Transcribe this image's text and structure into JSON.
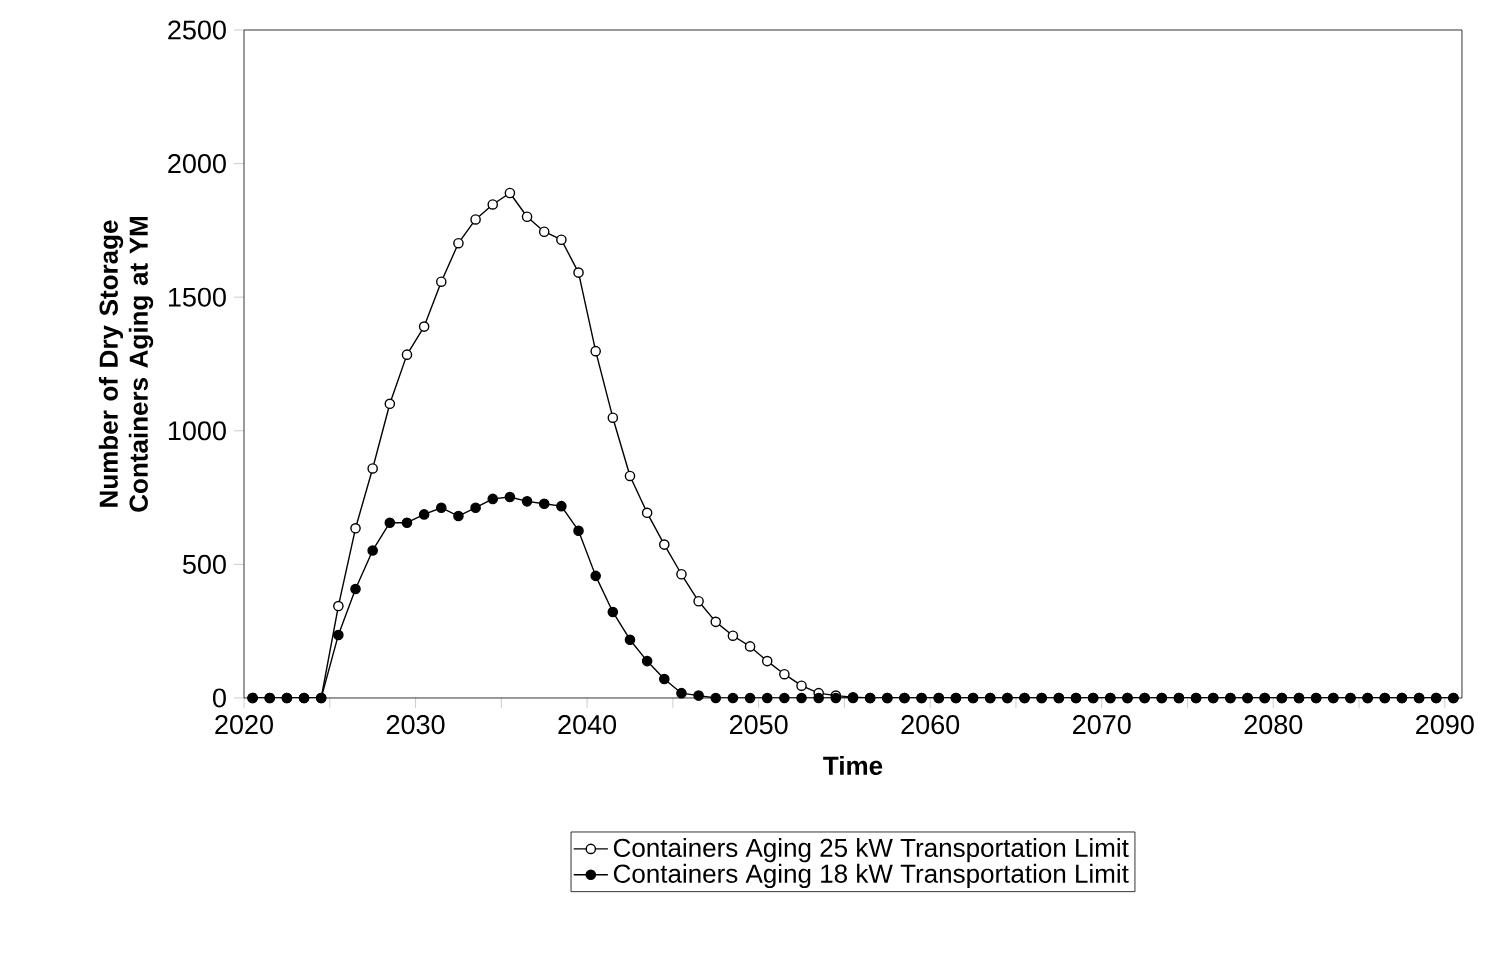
{
  "chart_data": {
    "type": "line",
    "xlabel": "Time",
    "ylabel": "Number of Dry Storage Containers Aging at YM",
    "x": [
      2020.5,
      2021.5,
      2022.5,
      2023.5,
      2024.5,
      2025.5,
      2026.5,
      2027.5,
      2028.5,
      2029.5,
      2030.5,
      2031.5,
      2032.5,
      2033.5,
      2034.5,
      2035.5,
      2036.5,
      2037.5,
      2038.5,
      2039.5,
      2040.5,
      2041.5,
      2042.5,
      2043.5,
      2044.5,
      2045.5,
      2046.5,
      2047.5,
      2048.5,
      2049.5,
      2050.5,
      2051.5,
      2052.5,
      2053.5,
      2054.5,
      2055.5,
      2056.5,
      2057.5,
      2058.5,
      2059.5,
      2060.5,
      2061.5,
      2062.5,
      2063.5,
      2064.5,
      2065.5,
      2066.5,
      2067.5,
      2068.5,
      2069.5,
      2070.5,
      2071.5,
      2072.5,
      2073.5,
      2074.5,
      2075.5,
      2076.5,
      2077.5,
      2078.5,
      2079.5,
      2080.5,
      2081.5,
      2082.5,
      2083.5,
      2084.5,
      2085.5,
      2086.5,
      2087.5,
      2088.5,
      2089.5,
      2090.5
    ],
    "series": [
      {
        "name": "Containers Aging 25 kW Transportation Limit",
        "color": "#000000",
        "values": [
          0,
          0,
          0,
          0,
          0,
          344,
          635,
          859,
          1101,
          1285,
          1390,
          1558,
          1702,
          1791,
          1847,
          1890,
          1801,
          1745,
          1715,
          1592,
          1298,
          1049,
          831,
          693,
          574,
          463,
          362,
          285,
          233,
          193,
          138,
          89,
          46,
          18,
          9,
          3,
          0,
          0,
          0,
          0,
          0,
          0,
          0,
          0,
          0,
          0,
          0,
          0,
          0,
          0,
          0,
          0,
          0,
          0,
          0,
          0,
          0,
          0,
          0,
          0,
          0,
          0,
          0,
          0,
          0,
          0,
          0,
          0,
          0,
          0,
          0
        ]
      },
      {
        "name": "Containers Aging 18 kW Transportation Limit",
        "color": "#000000",
        "values": [
          0,
          0,
          0,
          0,
          0,
          236,
          408,
          552,
          656,
          656,
          687,
          712,
          681,
          712,
          745,
          752,
          736,
          727,
          718,
          626,
          457,
          322,
          218,
          138,
          71,
          18,
          9,
          0,
          0,
          0,
          0,
          0,
          0,
          0,
          0,
          0,
          0,
          0,
          0,
          0,
          0,
          0,
          0,
          0,
          0,
          0,
          0,
          0,
          0,
          0,
          0,
          0,
          0,
          0,
          0,
          0,
          0,
          0,
          0,
          0,
          0,
          0,
          0,
          0,
          0,
          0,
          0,
          0,
          0,
          0,
          0
        ]
      }
    ],
    "xlim": [
      2020,
      2091
    ],
    "ylim": [
      0,
      2500
    ],
    "xticks": [
      2020,
      {
        "value": 2025,
        "label": null
      },
      2030,
      {
        "value": 2035,
        "label": null
      },
      2040,
      {
        "value": 2045,
        "label": null
      },
      2050,
      {
        "value": 2055,
        "label": null
      },
      2060,
      {
        "value": 2065,
        "label": null
      },
      2070,
      {
        "value": 2075,
        "label": null
      },
      2080,
      {
        "value": 2085,
        "label": null
      },
      2090
    ],
    "yticks": [
      0,
      500,
      1000,
      1500,
      2000,
      2500
    ],
    "grid": false,
    "legend": "bottom",
    "marker": "circle",
    "line_style": "solid"
  }
}
